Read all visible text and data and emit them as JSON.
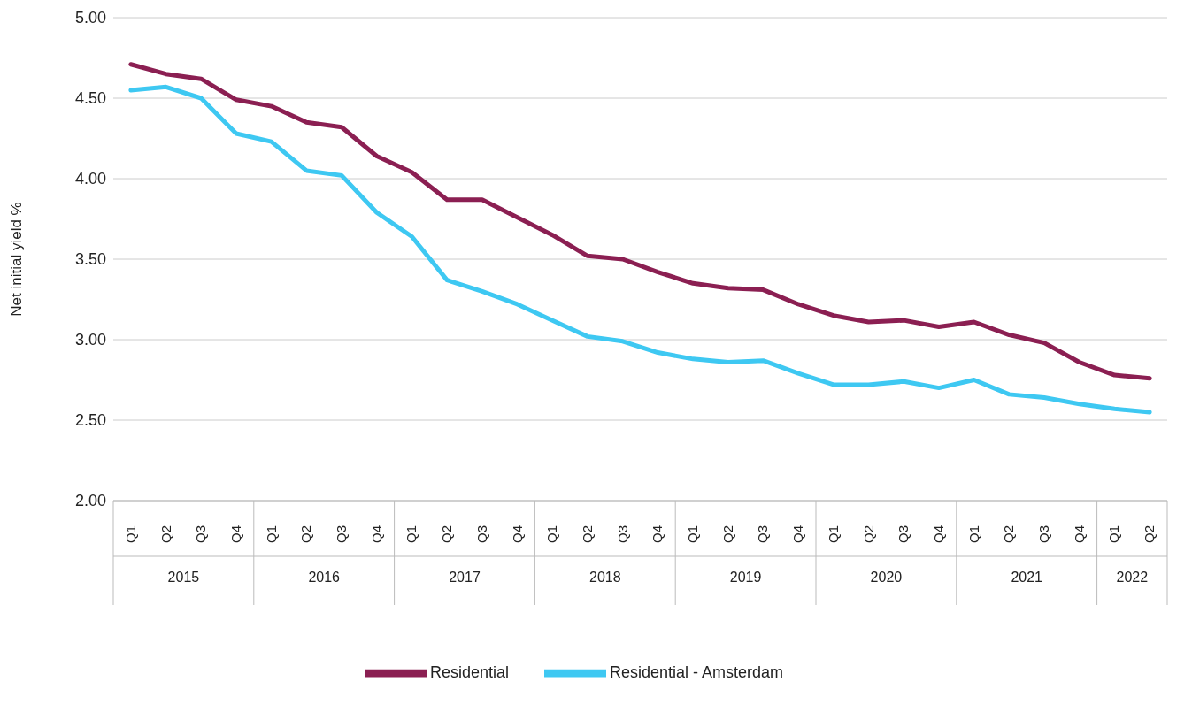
{
  "chart_data": {
    "type": "line",
    "ylabel": "Net initial yield %",
    "categories": [
      "Q1",
      "Q2",
      "Q3",
      "Q4",
      "Q1",
      "Q2",
      "Q3",
      "Q4",
      "Q1",
      "Q2",
      "Q3",
      "Q4",
      "Q1",
      "Q2",
      "Q3",
      "Q4",
      "Q1",
      "Q2",
      "Q3",
      "Q4",
      "Q1",
      "Q2",
      "Q3",
      "Q4",
      "Q1",
      "Q2",
      "Q3",
      "Q4",
      "Q1",
      "Q2"
    ],
    "annotations": [
      "2015",
      "2016",
      "2017",
      "2018",
      "2019",
      "2020",
      "2021",
      "2022"
    ],
    "series": [
      {
        "name": "Residential",
        "color": "#8b1f52",
        "values": [
          4.71,
          4.65,
          4.62,
          4.49,
          4.45,
          4.35,
          4.32,
          4.14,
          4.04,
          3.87,
          3.87,
          3.76,
          3.65,
          3.52,
          3.5,
          3.42,
          3.35,
          3.32,
          3.31,
          3.22,
          3.15,
          3.11,
          3.12,
          3.08,
          3.11,
          3.03,
          2.98,
          2.86,
          2.78,
          2.76
        ]
      },
      {
        "name": "Residential - Amsterdam",
        "color": "#3ec8f2",
        "values": [
          4.55,
          4.57,
          4.5,
          4.28,
          4.23,
          4.05,
          4.02,
          3.79,
          3.64,
          3.37,
          3.3,
          3.22,
          3.12,
          3.02,
          2.99,
          2.92,
          2.88,
          2.86,
          2.87,
          2.79,
          2.72,
          2.72,
          2.74,
          2.7,
          2.75,
          2.66,
          2.64,
          2.6,
          2.57,
          2.55
        ]
      }
    ],
    "ylim": [
      2,
      5
    ],
    "yticks": [
      {
        "value": 2,
        "label": "2.00"
      },
      {
        "value": 2.5,
        "label": "2.50"
      },
      {
        "value": 3,
        "label": "3.00"
      },
      {
        "value": 3.5,
        "label": "3.50"
      },
      {
        "value": 4,
        "label": "4.00"
      },
      {
        "value": 4.5,
        "label": "4.50"
      },
      {
        "value": 5,
        "label": "5.00"
      }
    ],
    "grid": "y",
    "legend": "bottom",
    "marker": "none",
    "line_style": "solid"
  }
}
